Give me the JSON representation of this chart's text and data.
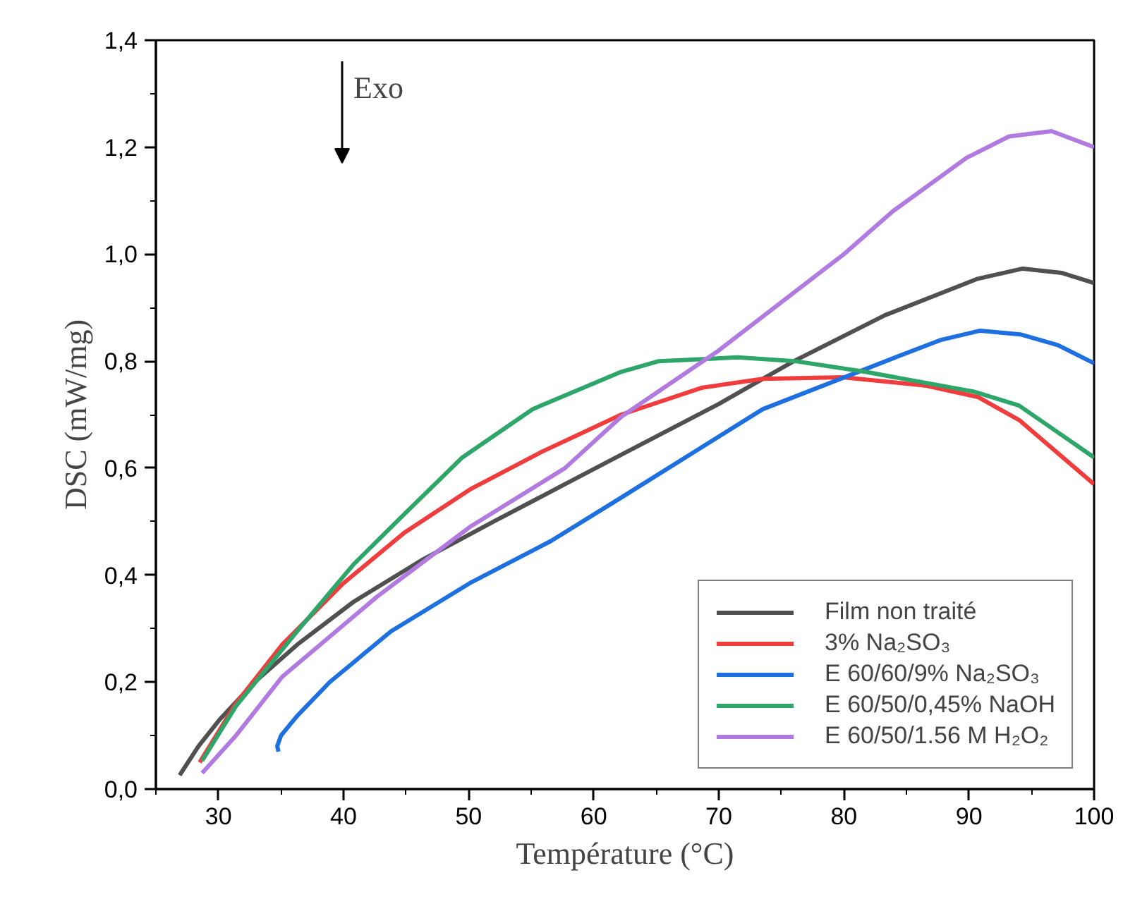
{
  "chart_data": {
    "type": "line",
    "xlabel": "Température (°C)",
    "ylabel": "DSC (mW/mg)",
    "annotations": [
      "Exo"
    ],
    "xlim": [
      25,
      100
    ],
    "ylim": [
      0,
      1.4
    ],
    "xticks": [
      30,
      40,
      50,
      60,
      70,
      80,
      90,
      100
    ],
    "yticks": [
      {
        "value": 0,
        "label": "0,0"
      },
      {
        "value": 0.2,
        "label": "0,2"
      },
      {
        "value": 0.4,
        "label": "0,4"
      },
      {
        "value": 0.6,
        "label": "0,6"
      },
      {
        "value": 0.8,
        "label": "0,8"
      },
      {
        "value": 1.0,
        "label": "1,0"
      },
      {
        "value": 1.2,
        "label": "1,2"
      },
      {
        "value": 1.4,
        "label": "1,4"
      }
    ],
    "grid": false,
    "legend": "bottom right",
    "line_style": "solid",
    "marker": "none",
    "series": [
      {
        "name": "Film non traité",
        "color": "#505050",
        "x": [
          26.9,
          28.4,
          30.1,
          32.9,
          36.3,
          40.8,
          46.4,
          52,
          57.7,
          62.2,
          70,
          76,
          83.3,
          90.7,
          94.3,
          97.4,
          100
        ],
        "values": [
          0.026,
          0.08,
          0.13,
          0.2,
          0.27,
          0.35,
          0.43,
          0.5,
          0.57,
          0.625,
          0.72,
          0.8,
          0.886,
          0.954,
          0.973,
          0.965,
          0.946
        ]
      },
      {
        "name": "3% Na₂SO₃",
        "color": "#f03c3c",
        "x": [
          28.5,
          31.4,
          35.1,
          40,
          44.9,
          50.1,
          55.8,
          62.2,
          68.6,
          73.5,
          79.9,
          86.6,
          90.7,
          94,
          100
        ],
        "values": [
          0.05,
          0.16,
          0.27,
          0.385,
          0.48,
          0.56,
          0.63,
          0.7,
          0.75,
          0.767,
          0.77,
          0.754,
          0.733,
          0.69,
          0.57
        ]
      },
      {
        "name": "E 60/60/9% Na₂SO₃",
        "color": "#1e6fe0",
        "x": [
          34.8,
          34.7,
          35.0,
          36.3,
          38.9,
          43.8,
          50.1,
          56.6,
          62.2,
          73.5,
          84,
          87.8,
          90.9,
          94.1,
          97.1,
          100
        ],
        "values": [
          0.07,
          0.08,
          0.1,
          0.137,
          0.2,
          0.295,
          0.385,
          0.464,
          0.545,
          0.71,
          0.806,
          0.84,
          0.857,
          0.85,
          0.83,
          0.796
        ]
      },
      {
        "name": "E 60/50/0,45% NaOH",
        "color": "#2ea66a",
        "x": [
          28.7,
          31.4,
          36.3,
          40.8,
          44.9,
          49.5,
          55.1,
          62.2,
          65.2,
          71.5,
          76.1,
          81.7,
          90.4,
          94,
          100
        ],
        "values": [
          0.053,
          0.155,
          0.295,
          0.42,
          0.515,
          0.62,
          0.71,
          0.78,
          0.8,
          0.807,
          0.8,
          0.78,
          0.743,
          0.717,
          0.62
        ]
      },
      {
        "name": "E 60/50/1.56 M H₂O₂",
        "color": "#b07ae0",
        "x": [
          28.7,
          31.4,
          35.1,
          42.7,
          50.1,
          57.7,
          62.2,
          70,
          80,
          83.9,
          89.8,
          93.2,
          96.6,
          100
        ],
        "values": [
          0.03,
          0.1,
          0.21,
          0.36,
          0.49,
          0.6,
          0.696,
          0.82,
          1.0,
          1.08,
          1.18,
          1.22,
          1.23,
          1.2
        ]
      }
    ]
  }
}
